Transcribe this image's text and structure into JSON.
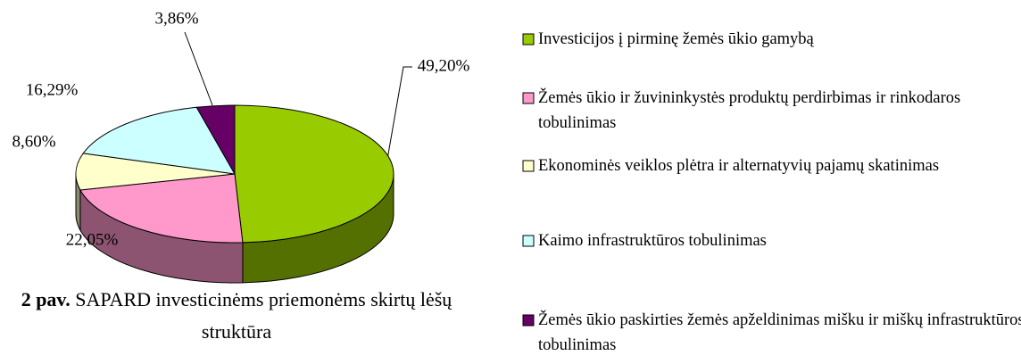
{
  "chart_data": {
    "type": "pie",
    "categories": [
      "Investicijos į pirminę žemės ūkio gamybą",
      "Žemės ūkio ir žuvininkystės produktų perdirbimas ir rinkodaros tobulinimas",
      "Ekonominės veiklos plėtra ir alternatyvių pajamų skatinimas",
      "Kaimo infrastruktūros tobulinimas",
      "Žemės ūkio paskirties žemės apželdinimas mišku ir miškų infrastruktūros tobulinimas"
    ],
    "values": [
      49.2,
      22.05,
      8.6,
      16.29,
      3.86
    ],
    "value_labels": [
      "49,20%",
      "22,05%",
      "8,60%",
      "16,29%",
      "3,86%"
    ],
    "colors": [
      "#99cc00",
      "#ff99cc",
      "#ffffcc",
      "#ccffff",
      "#660066"
    ],
    "legend": "right",
    "caption": {
      "label": "2 pav.",
      "text": "SAPARD investicinėms priemonėms skirtų lėšų struktūra"
    }
  }
}
